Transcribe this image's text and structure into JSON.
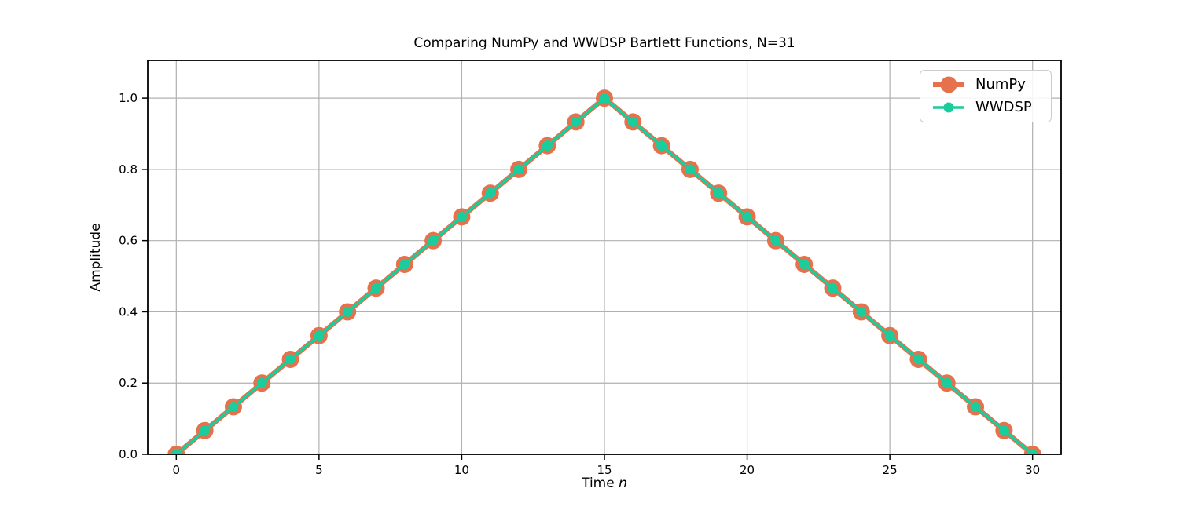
{
  "figure": {
    "title": "Comparing NumPy and WWDSP Bartlett Functions, N=31",
    "xlabel_prefix": "Time ",
    "xlabel_var": "n",
    "ylabel": "Amplitude"
  },
  "axes": {
    "background_color": "#ffffff",
    "spine_color": "#000000",
    "grid_color": "#b0b0b0",
    "tick_color": "#000000",
    "text_color": "#000000"
  },
  "legend": {
    "position": "upper right",
    "entries": [
      {
        "label": "NumPy"
      },
      {
        "label": "WWDSP"
      }
    ]
  },
  "chart_data": {
    "type": "line",
    "title": "Comparing NumPy and WWDSP Bartlett Functions, N=31",
    "xlabel": "Time n",
    "ylabel": "Amplitude",
    "grid": true,
    "legend_position": "upper right",
    "xlim": [
      -1,
      31
    ],
    "ylim": [
      0,
      1.106
    ],
    "xticks": [
      0,
      5,
      10,
      15,
      20,
      25,
      30
    ],
    "xtick_labels": [
      "0",
      "5",
      "10",
      "15",
      "20",
      "25",
      "30"
    ],
    "yticks": [
      0.0,
      0.2,
      0.4,
      0.6,
      0.8,
      1.0
    ],
    "ytick_labels": [
      "0.0",
      "0.2",
      "0.4",
      "0.6",
      "0.8",
      "1.0"
    ],
    "x": [
      0,
      1,
      2,
      3,
      4,
      5,
      6,
      7,
      8,
      9,
      10,
      11,
      12,
      13,
      14,
      15,
      16,
      17,
      18,
      19,
      20,
      21,
      22,
      23,
      24,
      25,
      26,
      27,
      28,
      29,
      30
    ],
    "series": [
      {
        "name": "NumPy",
        "color": "#E5714D",
        "line_width": 6.5,
        "marker_radius": 11,
        "values": [
          0.0,
          0.0667,
          0.1333,
          0.2,
          0.2667,
          0.3333,
          0.4,
          0.4667,
          0.5333,
          0.6,
          0.6667,
          0.7333,
          0.8,
          0.8667,
          0.9333,
          1.0,
          0.9333,
          0.8667,
          0.8,
          0.7333,
          0.6667,
          0.6,
          0.5333,
          0.4667,
          0.4,
          0.3333,
          0.2667,
          0.2,
          0.1333,
          0.0667,
          0.0
        ]
      },
      {
        "name": "WWDSP",
        "color": "#19CD9C",
        "line_width": 3.5,
        "marker_radius": 6.5,
        "values": [
          0.0,
          0.0667,
          0.1333,
          0.2,
          0.2667,
          0.3333,
          0.4,
          0.4667,
          0.5333,
          0.6,
          0.6667,
          0.7333,
          0.8,
          0.8667,
          0.9333,
          1.0,
          0.9333,
          0.8667,
          0.8,
          0.7333,
          0.6667,
          0.6,
          0.5333,
          0.4667,
          0.4,
          0.3333,
          0.2667,
          0.2,
          0.1333,
          0.0667,
          0.0
        ]
      }
    ]
  }
}
